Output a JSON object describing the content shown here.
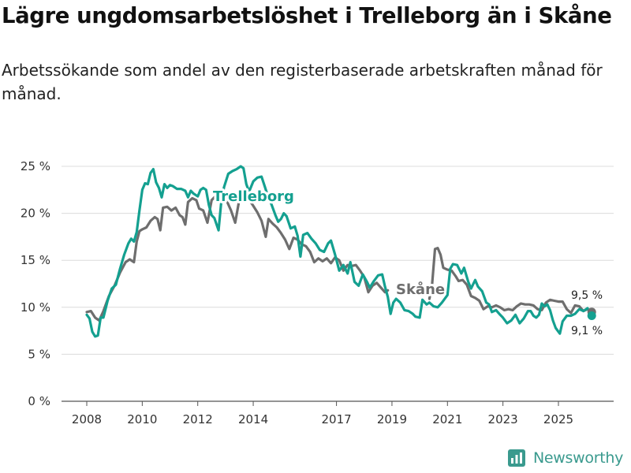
{
  "header": {
    "title": "Lägre ungdomsarbetslöshet i Trelleborg än i Skåne",
    "subtitle": "Arbetssökande som andel av den registerbaserade arbetskraften månad för månad."
  },
  "brand": {
    "name": "Newsworthy",
    "icon": "newsworthy-logo-icon",
    "color": "#3a9a8e"
  },
  "chart_data": {
    "type": "line",
    "title": "Lägre ungdomsarbetslöshet i Trelleborg än i Skåne",
    "ylabel": "",
    "xlabel": "",
    "ylim": [
      0,
      25
    ],
    "xlim": [
      2007.6,
      2026.9
    ],
    "y_ticks": [
      0,
      5,
      10,
      15,
      20,
      25
    ],
    "y_tick_labels": [
      "0 %",
      "5 %",
      "10 %",
      "15 %",
      "20 %",
      "25 %"
    ],
    "x_ticks": [
      2008,
      2010,
      2012,
      2014,
      2017,
      2019,
      2021,
      2023,
      2025
    ],
    "x_tick_labels": [
      "2008",
      "2010",
      "2012",
      "2014",
      "2017",
      "2019",
      "2021",
      "2023",
      "2025"
    ],
    "grid": true,
    "series": [
      {
        "name": "Skåne",
        "label": "Skåne",
        "color": "#6e6e6e",
        "end_label": "9,5 %",
        "points": [
          [
            2008.0,
            9.5
          ],
          [
            2008.15,
            9.6
          ],
          [
            2008.3,
            8.9
          ],
          [
            2008.45,
            8.6
          ],
          [
            2008.6,
            9.6
          ],
          [
            2008.8,
            11.2
          ],
          [
            2009.0,
            12.3
          ],
          [
            2009.2,
            13.7
          ],
          [
            2009.4,
            14.8
          ],
          [
            2009.55,
            15.1
          ],
          [
            2009.7,
            14.8
          ],
          [
            2009.8,
            17.0
          ],
          [
            2009.9,
            18.1
          ],
          [
            2010.0,
            18.3
          ],
          [
            2010.15,
            18.5
          ],
          [
            2010.3,
            19.2
          ],
          [
            2010.45,
            19.6
          ],
          [
            2010.55,
            19.4
          ],
          [
            2010.65,
            18.2
          ],
          [
            2010.75,
            20.6
          ],
          [
            2010.9,
            20.7
          ],
          [
            2011.05,
            20.3
          ],
          [
            2011.2,
            20.6
          ],
          [
            2011.35,
            19.8
          ],
          [
            2011.45,
            19.6
          ],
          [
            2011.55,
            18.8
          ],
          [
            2011.65,
            21.2
          ],
          [
            2011.8,
            21.6
          ],
          [
            2011.95,
            21.4
          ],
          [
            2012.05,
            20.5
          ],
          [
            2012.2,
            20.3
          ],
          [
            2012.35,
            19.0
          ],
          [
            2012.5,
            21.4
          ],
          [
            2012.7,
            22.0
          ],
          [
            2012.9,
            21.7
          ],
          [
            2013.05,
            21.3
          ],
          [
            2013.2,
            20.3
          ],
          [
            2013.35,
            19.0
          ],
          [
            2013.5,
            21.5
          ],
          [
            2013.65,
            22.0
          ],
          [
            2013.8,
            21.7
          ],
          [
            2014.0,
            20.8
          ],
          [
            2014.15,
            20.1
          ],
          [
            2014.3,
            19.2
          ],
          [
            2014.45,
            17.5
          ],
          [
            2014.55,
            19.4
          ],
          [
            2014.7,
            18.9
          ],
          [
            2014.85,
            18.5
          ],
          [
            2015.0,
            17.9
          ],
          [
            2015.15,
            17.2
          ],
          [
            2015.3,
            16.2
          ],
          [
            2015.45,
            17.4
          ],
          [
            2015.6,
            17.2
          ],
          [
            2015.75,
            16.7
          ],
          [
            2015.9,
            16.5
          ],
          [
            2016.05,
            15.9
          ],
          [
            2016.2,
            14.8
          ],
          [
            2016.35,
            15.2
          ],
          [
            2016.5,
            14.9
          ],
          [
            2016.65,
            15.2
          ],
          [
            2016.8,
            14.7
          ],
          [
            2016.95,
            15.3
          ],
          [
            2017.1,
            15.0
          ],
          [
            2017.25,
            13.9
          ],
          [
            2017.4,
            14.5
          ],
          [
            2017.55,
            14.4
          ],
          [
            2017.7,
            14.5
          ],
          [
            2017.85,
            13.9
          ],
          [
            2018.0,
            13.2
          ],
          [
            2018.15,
            11.6
          ],
          [
            2018.3,
            12.3
          ],
          [
            2018.45,
            12.6
          ],
          [
            2018.6,
            12.1
          ],
          [
            2018.75,
            11.6
          ],
          [
            2018.85,
            11.8
          ]
        ],
        "points_2": [
          [
            2020.35,
            10.9
          ],
          [
            2020.45,
            12.5
          ],
          [
            2020.55,
            16.2
          ],
          [
            2020.65,
            16.3
          ],
          [
            2020.75,
            15.6
          ],
          [
            2020.85,
            14.2
          ],
          [
            2021.0,
            14.0
          ],
          [
            2021.15,
            13.9
          ],
          [
            2021.3,
            13.3
          ],
          [
            2021.4,
            12.8
          ],
          [
            2021.55,
            12.9
          ],
          [
            2021.7,
            12.4
          ],
          [
            2021.85,
            11.2
          ],
          [
            2022.0,
            11.0
          ],
          [
            2022.15,
            10.7
          ],
          [
            2022.3,
            9.8
          ],
          [
            2022.45,
            10.1
          ],
          [
            2022.6,
            10.0
          ],
          [
            2022.75,
            10.2
          ],
          [
            2022.9,
            10.0
          ],
          [
            2023.05,
            9.7
          ],
          [
            2023.2,
            9.8
          ],
          [
            2023.35,
            9.7
          ],
          [
            2023.5,
            10.1
          ],
          [
            2023.65,
            10.4
          ],
          [
            2023.8,
            10.3
          ],
          [
            2023.95,
            10.3
          ],
          [
            2024.1,
            10.2
          ],
          [
            2024.25,
            9.8
          ],
          [
            2024.4,
            9.7
          ],
          [
            2024.55,
            10.5
          ],
          [
            2024.7,
            10.8
          ],
          [
            2024.85,
            10.7
          ],
          [
            2025.0,
            10.6
          ],
          [
            2025.15,
            10.6
          ],
          [
            2025.3,
            9.8
          ],
          [
            2025.45,
            9.4
          ],
          [
            2025.6,
            10.2
          ],
          [
            2025.75,
            10.1
          ],
          [
            2025.9,
            9.6
          ],
          [
            2026.05,
            9.8
          ],
          [
            2026.2,
            9.5
          ]
        ]
      },
      {
        "name": "Trelleborg",
        "label": "Trelleborg",
        "color": "#14a090",
        "end_label": "9,1 %",
        "points": [
          [
            2008.0,
            9.2
          ],
          [
            2008.1,
            8.8
          ],
          [
            2008.2,
            7.4
          ],
          [
            2008.3,
            6.9
          ],
          [
            2008.4,
            7.0
          ],
          [
            2008.5,
            8.9
          ],
          [
            2008.6,
            8.9
          ],
          [
            2008.75,
            10.7
          ],
          [
            2008.9,
            12.0
          ],
          [
            2009.05,
            12.4
          ],
          [
            2009.2,
            14.1
          ],
          [
            2009.35,
            15.6
          ],
          [
            2009.5,
            16.8
          ],
          [
            2009.6,
            17.3
          ],
          [
            2009.7,
            17.0
          ],
          [
            2009.8,
            18.0
          ],
          [
            2009.9,
            20.3
          ],
          [
            2010.0,
            22.5
          ],
          [
            2010.1,
            23.2
          ],
          [
            2010.2,
            23.1
          ],
          [
            2010.3,
            24.3
          ],
          [
            2010.4,
            24.7
          ],
          [
            2010.5,
            23.3
          ],
          [
            2010.6,
            22.7
          ],
          [
            2010.7,
            21.7
          ],
          [
            2010.8,
            23.1
          ],
          [
            2010.9,
            22.7
          ],
          [
            2011.0,
            23.0
          ],
          [
            2011.1,
            22.9
          ],
          [
            2011.25,
            22.6
          ],
          [
            2011.4,
            22.6
          ],
          [
            2011.55,
            22.4
          ],
          [
            2011.65,
            21.7
          ],
          [
            2011.75,
            22.4
          ],
          [
            2011.85,
            22.1
          ],
          [
            2012.0,
            21.8
          ],
          [
            2012.1,
            22.5
          ],
          [
            2012.2,
            22.7
          ],
          [
            2012.3,
            22.5
          ],
          [
            2012.4,
            20.9
          ],
          [
            2012.5,
            19.8
          ],
          [
            2012.6,
            19.5
          ],
          [
            2012.75,
            18.2
          ],
          [
            2012.85,
            21.3
          ],
          [
            2012.95,
            22.8
          ],
          [
            2013.1,
            24.2
          ],
          [
            2013.25,
            24.5
          ],
          [
            2013.4,
            24.7
          ],
          [
            2013.55,
            25.0
          ],
          [
            2013.65,
            24.8
          ],
          [
            2013.75,
            23.1
          ],
          [
            2013.85,
            22.3
          ],
          [
            2014.0,
            23.4
          ],
          [
            2014.15,
            23.8
          ],
          [
            2014.3,
            23.9
          ],
          [
            2014.4,
            23.0
          ],
          [
            2014.5,
            22.1
          ],
          [
            2014.6,
            21.4
          ],
          [
            2014.7,
            20.6
          ],
          [
            2014.8,
            19.8
          ],
          [
            2014.9,
            19.1
          ],
          [
            2015.0,
            19.4
          ],
          [
            2015.1,
            20.0
          ],
          [
            2015.2,
            19.7
          ],
          [
            2015.35,
            18.4
          ],
          [
            2015.5,
            18.6
          ],
          [
            2015.6,
            17.6
          ],
          [
            2015.7,
            15.4
          ],
          [
            2015.8,
            17.7
          ],
          [
            2015.95,
            17.9
          ],
          [
            2016.1,
            17.3
          ],
          [
            2016.25,
            16.8
          ],
          [
            2016.4,
            16.1
          ],
          [
            2016.55,
            15.9
          ],
          [
            2016.7,
            16.8
          ],
          [
            2016.8,
            17.1
          ],
          [
            2016.95,
            15.6
          ],
          [
            2017.1,
            13.9
          ],
          [
            2017.25,
            14.5
          ],
          [
            2017.4,
            13.6
          ],
          [
            2017.5,
            14.8
          ],
          [
            2017.65,
            12.7
          ],
          [
            2017.8,
            12.3
          ],
          [
            2017.95,
            13.5
          ],
          [
            2018.1,
            12.7
          ],
          [
            2018.2,
            12.1
          ],
          [
            2018.35,
            12.8
          ],
          [
            2018.5,
            13.4
          ],
          [
            2018.65,
            13.5
          ],
          [
            2018.75,
            12.2
          ],
          [
            2018.85,
            11.1
          ],
          [
            2018.95,
            9.3
          ],
          [
            2019.05,
            10.5
          ],
          [
            2019.15,
            10.9
          ],
          [
            2019.3,
            10.5
          ],
          [
            2019.45,
            9.7
          ],
          [
            2019.6,
            9.6
          ],
          [
            2019.75,
            9.3
          ],
          [
            2019.85,
            9.0
          ],
          [
            2020.0,
            8.9
          ],
          [
            2020.1,
            10.8
          ],
          [
            2020.25,
            10.3
          ],
          [
            2020.35,
            10.5
          ],
          [
            2020.5,
            10.1
          ],
          [
            2020.65,
            10.0
          ],
          [
            2020.8,
            10.5
          ],
          [
            2020.9,
            10.9
          ],
          [
            2021.0,
            11.3
          ],
          [
            2021.1,
            14.1
          ],
          [
            2021.2,
            14.6
          ],
          [
            2021.35,
            14.5
          ],
          [
            2021.5,
            13.6
          ],
          [
            2021.6,
            14.2
          ],
          [
            2021.75,
            12.7
          ],
          [
            2021.85,
            12.0
          ],
          [
            2022.0,
            12.9
          ],
          [
            2022.1,
            12.2
          ],
          [
            2022.25,
            11.7
          ],
          [
            2022.4,
            10.5
          ],
          [
            2022.5,
            10.3
          ],
          [
            2022.6,
            9.5
          ],
          [
            2022.75,
            9.7
          ],
          [
            2022.9,
            9.2
          ],
          [
            2023.0,
            8.9
          ],
          [
            2023.15,
            8.3
          ],
          [
            2023.3,
            8.6
          ],
          [
            2023.45,
            9.2
          ],
          [
            2023.6,
            8.3
          ],
          [
            2023.75,
            8.8
          ],
          [
            2023.9,
            9.6
          ],
          [
            2024.0,
            9.6
          ],
          [
            2024.1,
            9.1
          ],
          [
            2024.2,
            8.9
          ],
          [
            2024.3,
            9.2
          ],
          [
            2024.4,
            10.4
          ],
          [
            2024.5,
            10.1
          ],
          [
            2024.6,
            10.3
          ],
          [
            2024.7,
            9.7
          ],
          [
            2024.8,
            8.6
          ],
          [
            2024.9,
            7.8
          ],
          [
            2025.0,
            7.4
          ],
          [
            2025.05,
            7.2
          ],
          [
            2025.15,
            8.5
          ],
          [
            2025.3,
            9.1
          ],
          [
            2025.45,
            9.1
          ],
          [
            2025.6,
            9.3
          ],
          [
            2025.75,
            9.8
          ],
          [
            2025.9,
            9.6
          ],
          [
            2026.05,
            9.9
          ],
          [
            2026.2,
            9.1
          ]
        ]
      }
    ]
  }
}
